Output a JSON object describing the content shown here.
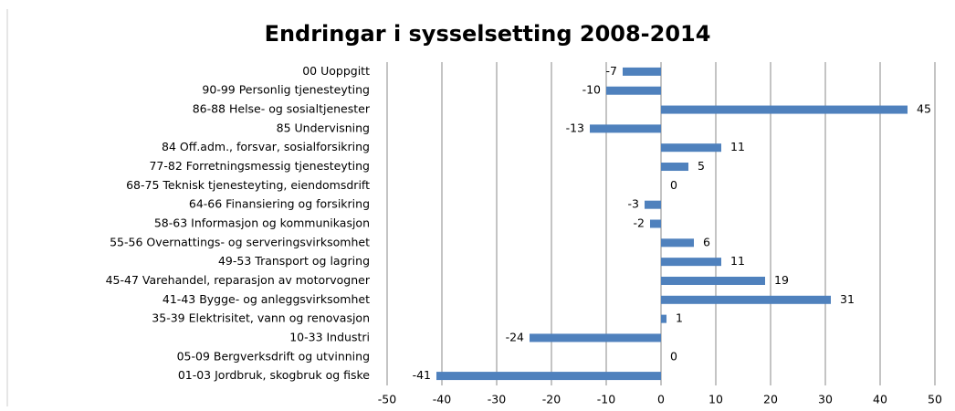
{
  "chart_data": {
    "type": "hbar",
    "title": "Endringar i sysselsetting 2008-2014",
    "categories": [
      "00 Uoppgitt",
      "90-99 Personlig tjenesteyting",
      "86-88 Helse- og sosialtjenester",
      "85 Undervisning",
      "84 Off.adm., forsvar, sosialforsikring",
      "77-82 Forretningsmessig tjenesteyting",
      "68-75 Teknisk tjenesteyting, eiendomsdrift",
      "64-66 Finansiering og forsikring",
      "58-63 Informasjon og kommunikasjon",
      "55-56 Overnattings- og serveringsvirksomhet",
      "49-53 Transport og lagring",
      "45-47 Varehandel, reparasjon av motorvogner",
      "41-43 Bygge- og anleggsvirksomhet",
      "35-39 Elektrisitet, vann og renovasjon",
      "10-33 Industri",
      "05-09 Bergverksdrift og utvinning",
      "01-03 Jordbruk, skogbruk og fiske"
    ],
    "values": [
      -7,
      -10,
      45,
      -13,
      11,
      5,
      0,
      -3,
      -2,
      6,
      11,
      19,
      31,
      1,
      -24,
      0,
      -41
    ],
    "color": "#4f81bd",
    "xlim": [
      -50,
      50
    ],
    "xticks": [
      -50,
      -40,
      -30,
      -20,
      -10,
      0,
      10,
      20,
      30,
      40,
      50
    ],
    "grid": true
  }
}
